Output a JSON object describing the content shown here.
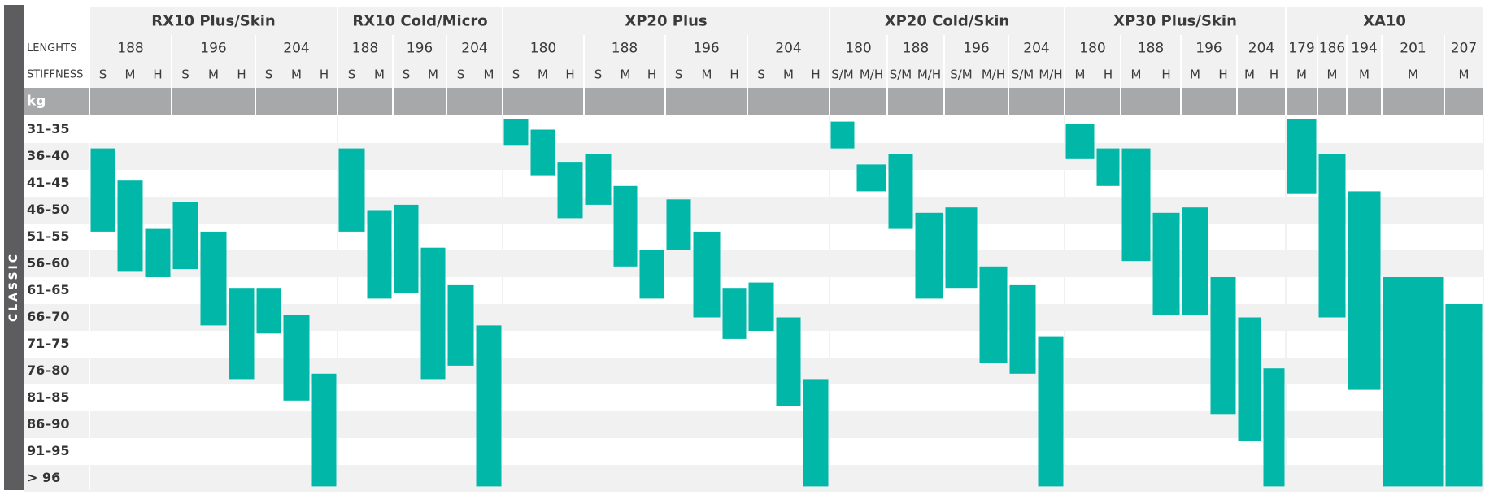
{
  "chart_data": {
    "type": "table",
    "side_label": "CLASSIC",
    "row_labels": {
      "lengths": "LENGHTS",
      "stiffness": "STIFFNESS",
      "kg": "kg"
    },
    "weight_classes": [
      "31–35",
      "36–40",
      "41–45",
      "46–50",
      "51–55",
      "56–60",
      "61–65",
      "66–70",
      "71–75",
      "76–80",
      "81–85",
      "86–90",
      "91–95",
      "> 96"
    ],
    "models": [
      {
        "name": "RX10 Plus/Skin",
        "lengths": [
          {
            "length": "188",
            "stiffness": [
              "S",
              "M",
              "H"
            ]
          },
          {
            "length": "196",
            "stiffness": [
              "S",
              "M",
              "H"
            ]
          },
          {
            "length": "204",
            "stiffness": [
              "S",
              "M",
              "H"
            ]
          }
        ]
      },
      {
        "name": "RX10 Cold/Micro",
        "lengths": [
          {
            "length": "188",
            "stiffness": [
              "S",
              "M"
            ]
          },
          {
            "length": "196",
            "stiffness": [
              "S",
              "M"
            ]
          },
          {
            "length": "204",
            "stiffness": [
              "S",
              "M"
            ]
          }
        ]
      },
      {
        "name": "XP20 Plus",
        "lengths": [
          {
            "length": "180",
            "stiffness": [
              "S",
              "M",
              "H"
            ]
          },
          {
            "length": "188",
            "stiffness": [
              "S",
              "M",
              "H"
            ]
          },
          {
            "length": "196",
            "stiffness": [
              "S",
              "M",
              "H"
            ]
          },
          {
            "length": "204",
            "stiffness": [
              "S",
              "M",
              "H"
            ]
          }
        ]
      },
      {
        "name": "XP20 Cold/Skin",
        "lengths": [
          {
            "length": "180",
            "stiffness": [
              "S/M",
              "M/H"
            ]
          },
          {
            "length": "188",
            "stiffness": [
              "S/M",
              "M/H"
            ]
          },
          {
            "length": "196",
            "stiffness": [
              "S/M",
              "M/H"
            ]
          },
          {
            "length": "204",
            "stiffness": [
              "S/M",
              "M/H"
            ]
          }
        ]
      },
      {
        "name": "XP30 Plus/Skin",
        "lengths": [
          {
            "length": "180",
            "stiffness": [
              "M",
              "H"
            ]
          },
          {
            "length": "188",
            "stiffness": [
              "M",
              "H"
            ]
          },
          {
            "length": "196",
            "stiffness": [
              "M",
              "H"
            ]
          },
          {
            "length": "204",
            "stiffness": [
              "M",
              "H"
            ]
          }
        ]
      },
      {
        "name": "XA10",
        "lengths": [
          {
            "length": "179",
            "stiffness": [
              "M"
            ]
          },
          {
            "length": "186",
            "stiffness": [
              "M"
            ]
          },
          {
            "length": "194",
            "stiffness": [
              "M"
            ]
          },
          {
            "length": "201",
            "stiffness": [
              "M"
            ]
          },
          {
            "length": "207",
            "stiffness": [
              "M"
            ]
          }
        ]
      }
    ],
    "bar_ranges_kg": [
      [
        37,
        52.5
      ],
      [
        43,
        60
      ],
      [
        52,
        61
      ],
      [
        47,
        59.5
      ],
      [
        52.5,
        70
      ],
      [
        63,
        80
      ],
      [
        63,
        71.5
      ],
      [
        68,
        84
      ],
      [
        79,
        100
      ],
      [
        37,
        52.5
      ],
      [
        48.5,
        65
      ],
      [
        47.5,
        64
      ],
      [
        55.5,
        80
      ],
      [
        62.5,
        77.5
      ],
      [
        70,
        100
      ],
      [
        31.5,
        36.5
      ],
      [
        33.5,
        42
      ],
      [
        39.5,
        50
      ],
      [
        38,
        47.5
      ],
      [
        44,
        59
      ],
      [
        56,
        65
      ],
      [
        46.5,
        56
      ],
      [
        52.5,
        68.5
      ],
      [
        63,
        72.5
      ],
      [
        62,
        71
      ],
      [
        68.5,
        85
      ],
      [
        80,
        100
      ],
      [
        32,
        37
      ],
      [
        40,
        45
      ],
      [
        38,
        52
      ],
      [
        49,
        65
      ],
      [
        48,
        63
      ],
      [
        59,
        77
      ],
      [
        62.5,
        79
      ],
      [
        72,
        100
      ],
      [
        32.5,
        39
      ],
      [
        37,
        44
      ],
      [
        37,
        58
      ],
      [
        49,
        68
      ],
      [
        48,
        68
      ],
      [
        61,
        86.5
      ],
      [
        68.5,
        91.5
      ],
      [
        78,
        100
      ],
      [
        31.5,
        45.5
      ],
      [
        38,
        68.5
      ],
      [
        45,
        82
      ],
      [
        61,
        100
      ],
      [
        66,
        100
      ]
    ],
    "bar_color": "#00b7a8"
  }
}
